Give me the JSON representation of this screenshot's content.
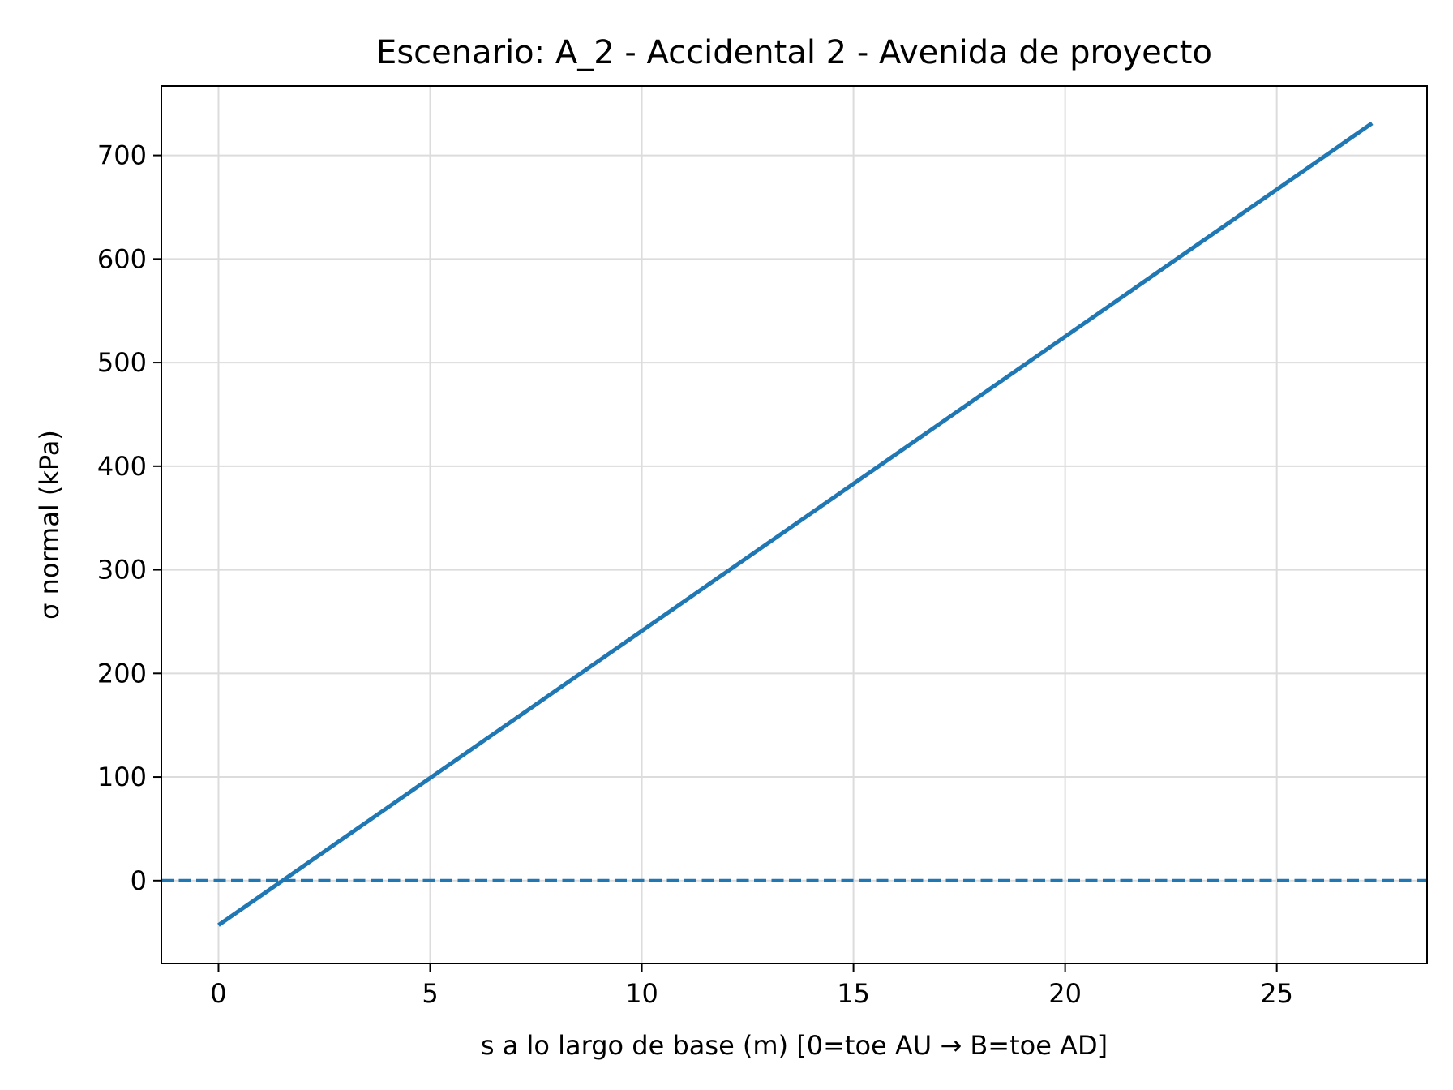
{
  "chart_data": {
    "type": "line",
    "title": "Escenario: A_2 - Accidental 2 - Avenida de proyecto",
    "xlabel": "s a lo largo de base (m)  [0=toe AU → B=toe AD]",
    "ylabel": "σ normal (kPa)",
    "xlim": [
      -1.35,
      28.55
    ],
    "ylim": [
      -80,
      767
    ],
    "x_ticks": [
      0,
      5,
      10,
      15,
      20,
      25
    ],
    "y_ticks": [
      0,
      100,
      200,
      300,
      400,
      500,
      600,
      700
    ],
    "grid": true,
    "series": [
      {
        "x": [
          0,
          27.25
        ],
        "y": [
          -43,
          731
        ],
        "color": "#1f77b4",
        "style": "solid"
      }
    ],
    "reference_lines": [
      {
        "orientation": "horizontal",
        "y": 0,
        "color": "#1f77b4",
        "style": "dashed"
      }
    ]
  }
}
